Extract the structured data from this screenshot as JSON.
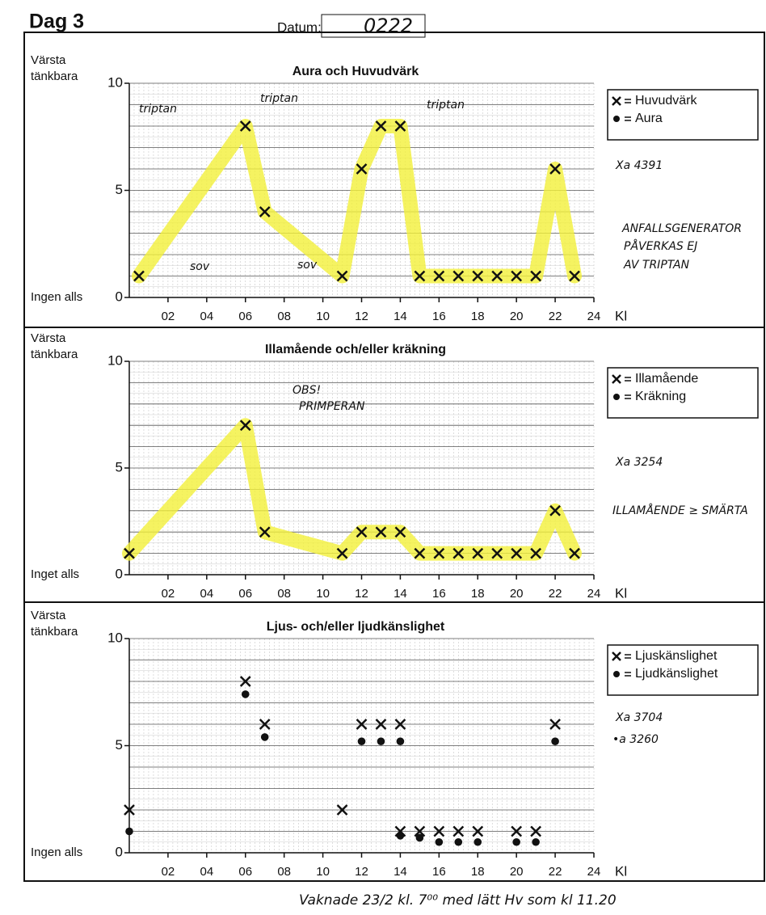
{
  "header": {
    "day": "Dag 3",
    "date_label": "Datum:",
    "date": "0222"
  },
  "footer": "Vaknade 23/2 kl. 7⁰⁰ med lätt Hv som kl 11.20",
  "chart_data": [
    {
      "type": "scatter",
      "title": "Aura och Huvudvärk",
      "y_top_label": [
        "Värsta",
        "tänkbara"
      ],
      "y_bottom_label": "Ingen alls",
      "xlabel": "Kl",
      "xlim": [
        0,
        24
      ],
      "ylim": [
        0,
        10
      ],
      "yticks": [
        0,
        5,
        10
      ],
      "xticks": [
        {
          "value": 2,
          "label": "02"
        },
        {
          "value": 4,
          "label": "04"
        },
        {
          "value": 6,
          "label": "06"
        },
        {
          "value": 8,
          "label": "08"
        },
        10,
        12,
        14,
        16,
        18,
        20,
        22,
        24
      ],
      "highlight": "#f3f03a",
      "series": [
        {
          "name": "Huvudvärk",
          "marker": "x",
          "color": "#111111",
          "x": [
            0.5,
            6,
            7,
            11,
            12,
            13,
            14,
            15,
            16,
            17,
            18,
            19,
            20,
            21,
            22,
            23
          ],
          "values": [
            1,
            8,
            4,
            1,
            6,
            8,
            8,
            1,
            1,
            1,
            1,
            1,
            1,
            1,
            6,
            1
          ]
        },
        {
          "name": "Aura",
          "marker": "dot",
          "color": "#111111",
          "x": [],
          "values": []
        }
      ],
      "annotations": [
        "triptan",
        "triptan",
        "triptan",
        "sov",
        "sov",
        "Xa 4391",
        "ANFALLSGENERATOR",
        "PÅVERKAS EJ",
        "AV TRIPTAN"
      ]
    },
    {
      "type": "scatter",
      "title": "Illamående och/eller kräkning",
      "y_top_label": [
        "Värsta",
        "tänkbara"
      ],
      "y_bottom_label": "Inget alls",
      "xlabel": "Kl",
      "xlim": [
        0,
        24
      ],
      "ylim": [
        0,
        10
      ],
      "yticks": [
        0,
        5,
        10
      ],
      "xticks": [
        {
          "value": 2,
          "label": "02"
        },
        {
          "value": 4,
          "label": "04"
        },
        {
          "value": 6,
          "label": "06"
        },
        {
          "value": 8,
          "label": "08"
        },
        10,
        12,
        14,
        16,
        18,
        20,
        22,
        24
      ],
      "highlight": "#f3f03a",
      "series": [
        {
          "name": "Illamående",
          "marker": "x",
          "color": "#111111",
          "x": [
            0,
            6,
            7,
            11,
            12,
            13,
            14,
            15,
            16,
            17,
            18,
            19,
            20,
            21,
            22,
            23
          ],
          "values": [
            1,
            7,
            2,
            1,
            2,
            2,
            2,
            1,
            1,
            1,
            1,
            1,
            1,
            1,
            3,
            1
          ]
        },
        {
          "name": "Kräkning",
          "marker": "dot",
          "color": "#111111",
          "x": [],
          "values": []
        }
      ],
      "annotations": [
        "OBS!",
        "PRIMPERAN",
        "Xa 3254",
        "ILLAMÅENDE ≥ SMÄRTA"
      ]
    },
    {
      "type": "scatter",
      "title": "Ljus- och/eller ljudkänslighet",
      "y_top_label": [
        "Värsta",
        "tänkbara"
      ],
      "y_bottom_label": "Ingen alls",
      "xlabel": "Kl",
      "xlim": [
        0,
        24
      ],
      "ylim": [
        0,
        10
      ],
      "yticks": [
        0,
        5,
        10
      ],
      "xticks": [
        {
          "value": 2,
          "label": "02"
        },
        {
          "value": 4,
          "label": "04"
        },
        {
          "value": 6,
          "label": "06"
        },
        {
          "value": 8,
          "label": "08"
        },
        10,
        12,
        14,
        16,
        18,
        20,
        22,
        24
      ],
      "series": [
        {
          "name": "Ljuskänslighet",
          "marker": "x",
          "color": "#111111",
          "x": [
            0,
            6,
            7,
            11,
            12,
            13,
            14,
            22,
            14,
            15,
            16,
            17,
            18,
            20,
            21
          ],
          "values": [
            2,
            8,
            6,
            2,
            6,
            6,
            6,
            6,
            1,
            1,
            1,
            1,
            1,
            1,
            1
          ]
        },
        {
          "name": "Ljudkänslighet",
          "marker": "dot",
          "color": "#111111",
          "x": [
            0,
            6,
            7,
            12,
            13,
            14,
            22,
            14,
            15,
            16,
            17,
            18,
            20,
            21
          ],
          "values": [
            1,
            7.4,
            5.4,
            5.2,
            5.2,
            5.2,
            5.2,
            0.8,
            0.7,
            0.5,
            0.5,
            0.5,
            0.5,
            0.5
          ]
        }
      ],
      "annotations": [
        "Xa 3704",
        "•a 3260"
      ]
    }
  ]
}
